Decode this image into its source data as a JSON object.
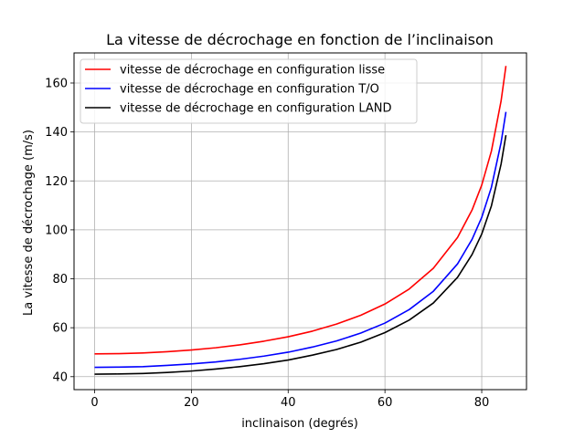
{
  "chart_data": {
    "type": "line",
    "title": "La vitesse de décrochage en fonction de l’inclinaison",
    "xlabel": "inclinaison (degrés)",
    "ylabel": "La vitesse de décrochage (m/s)",
    "xlim": [
      -4.25,
      89.25
    ],
    "ylim": [
      34.7,
      172.3
    ],
    "xticks": [
      0,
      20,
      40,
      60,
      80
    ],
    "yticks": [
      40,
      60,
      80,
      100,
      120,
      140,
      160
    ],
    "grid": true,
    "legend_position": "top-left",
    "x": [
      0,
      5,
      10,
      15,
      20,
      25,
      30,
      35,
      40,
      45,
      50,
      55,
      60,
      65,
      70,
      75,
      78,
      80,
      82,
      84,
      85
    ],
    "series": [
      {
        "name": "vitesse de décrochage en configuration lisse",
        "color": "#ff0000",
        "values": [
          49.3,
          49.4,
          49.7,
          50.2,
          50.9,
          51.8,
          53.0,
          54.5,
          56.3,
          58.6,
          61.5,
          65.1,
          69.7,
          75.8,
          84.3,
          96.9,
          108.1,
          118.3,
          132.2,
          152.7,
          167.0
        ]
      },
      {
        "name": "vitesse de décrochage en configuration T/O",
        "color": "#0000ff",
        "values": [
          43.8,
          43.9,
          44.1,
          44.6,
          45.2,
          46.0,
          47.1,
          48.4,
          50.0,
          52.1,
          54.6,
          57.8,
          61.9,
          67.4,
          74.9,
          86.1,
          96.1,
          105.1,
          117.4,
          135.7,
          148.2
        ]
      },
      {
        "name": "vitesse de décrochage en configuration LAND",
        "color": "#000000",
        "values": [
          41.0,
          41.1,
          41.3,
          41.7,
          42.3,
          43.1,
          44.1,
          45.3,
          46.8,
          48.8,
          51.1,
          54.1,
          58.0,
          63.1,
          70.1,
          80.6,
          89.9,
          98.3,
          109.8,
          126.9,
          138.7
        ]
      }
    ]
  }
}
